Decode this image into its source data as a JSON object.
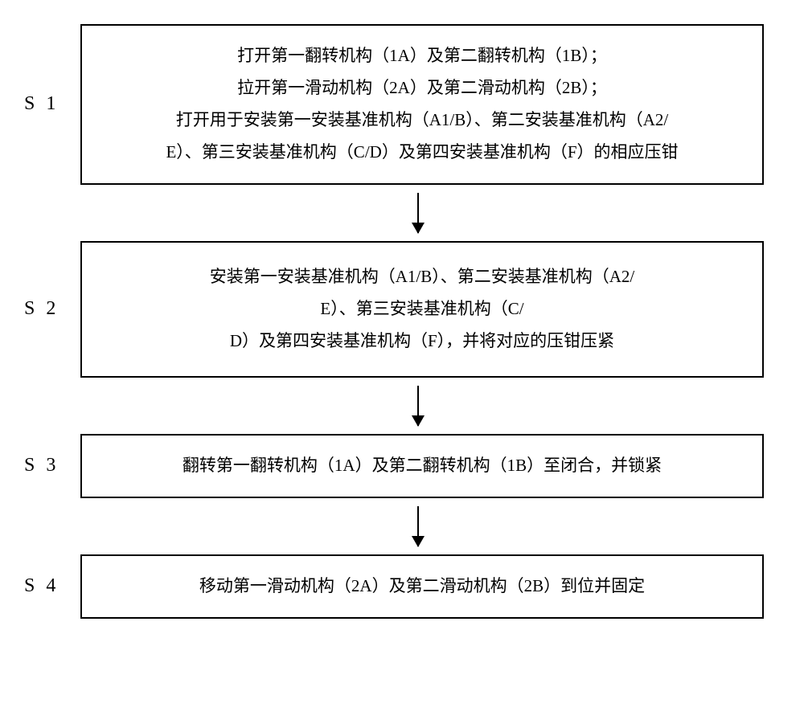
{
  "flowchart": {
    "type": "flowchart",
    "direction": "vertical",
    "background_color": "#ffffff",
    "border_color": "#000000",
    "border_width": 2,
    "text_color": "#000000",
    "font_family": "SimSun",
    "label_fontsize": 24,
    "content_fontsize": 21,
    "arrow_color": "#000000",
    "steps": [
      {
        "label": "S 1",
        "lines": [
          "打开第一翻转机构（1A）及第二翻转机构（1B）；",
          "拉开第一滑动机构（2A）及第二滑动机构（2B）；",
          "打开用于安装第一安装基准机构（A1/B）、第二安装基准机构（A2/",
          "E）、第三安装基准机构（C/D）及第四安装基准机构（F）的相应压钳"
        ]
      },
      {
        "label": "S 2",
        "lines": [
          "安装第一安装基准机构（A1/B）、第二安装基准机构（A2/",
          "E）、第三安装基准机构（C/",
          "D）及第四安装基准机构（F），并将对应的压钳压紧"
        ]
      },
      {
        "label": "S 3",
        "lines": [
          "翻转第一翻转机构（1A）及第二翻转机构（1B）至闭合，并锁紧"
        ]
      },
      {
        "label": "S 4",
        "lines": [
          "移动第一滑动机构（2A）及第二滑动机构（2B）到位并固定"
        ]
      }
    ]
  }
}
